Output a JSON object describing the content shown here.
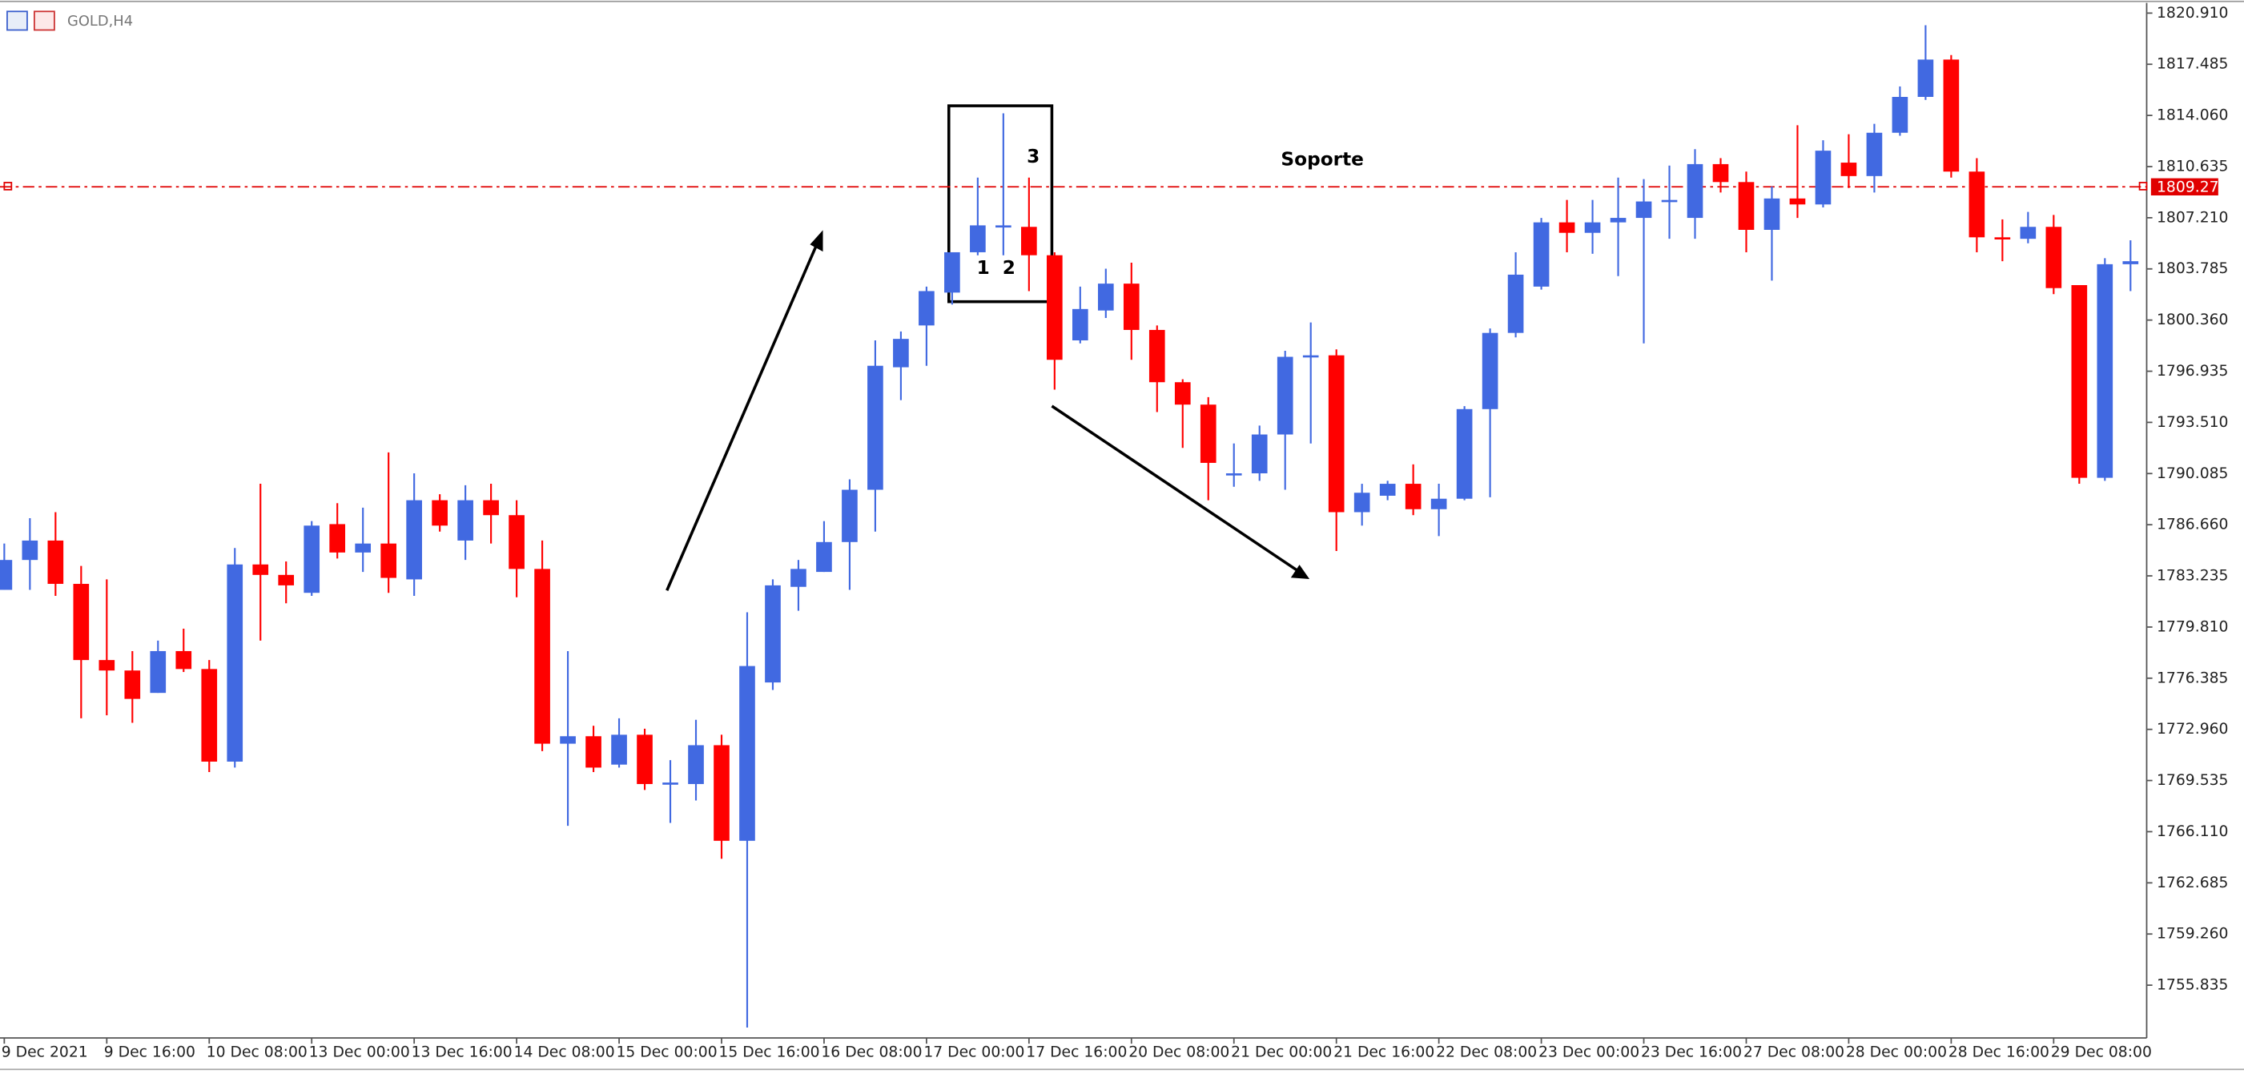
{
  "chart_data": {
    "type": "candlestick",
    "title": "GOLD,H4",
    "categories": [
      "9 Dec 2021",
      null,
      null,
      null,
      "9 Dec 16:00",
      null,
      null,
      null,
      "10 Dec 08:00",
      null,
      null,
      null,
      "13 Dec 00:00",
      null,
      null,
      null,
      "13 Dec 16:00",
      null,
      null,
      null,
      "14 Dec 08:00",
      null,
      null,
      null,
      "15 Dec 00:00",
      null,
      null,
      null,
      "15 Dec 16:00",
      null,
      null,
      null,
      "16 Dec 08:00",
      null,
      null,
      null,
      "17 Dec 00:00",
      null,
      null,
      null,
      "17 Dec 16:00",
      null,
      null,
      null,
      "20 Dec 08:00",
      null,
      null,
      null,
      "21 Dec 00:00",
      null,
      null,
      null,
      "21 Dec 16:00",
      null,
      null,
      null,
      "22 Dec 08:00",
      null,
      null,
      null,
      "23 Dec 00:00",
      null,
      null,
      null,
      "23 Dec 16:00",
      null,
      null,
      null,
      "27 Dec 08:00",
      null,
      null,
      null,
      "28 Dec 00:00",
      null,
      null,
      null,
      "28 Dec 16:00",
      null,
      null,
      null,
      "29 Dec 08:00",
      null,
      null,
      null
    ],
    "open": [
      1782.3,
      1784.3,
      1785.6,
      1782.7,
      1777.6,
      1776.9,
      1775.4,
      1778.2,
      1777.0,
      1770.8,
      1784.0,
      1783.3,
      1782.1,
      1786.7,
      1784.8,
      1785.4,
      1783.0,
      1788.3,
      1785.6,
      1788.3,
      1787.3,
      1783.7,
      1772.0,
      1772.5,
      1770.6,
      1772.6,
      1769.3,
      1769.3,
      1771.9,
      1765.5,
      1776.1,
      1782.5,
      1783.5,
      1785.5,
      1789.0,
      1797.2,
      1800.0,
      1802.2,
      1804.9,
      1806.6,
      1806.6,
      1804.7,
      1799.0,
      1801.0,
      1802.8,
      1799.7,
      1796.2,
      1794.7,
      1790.0,
      1790.1,
      1792.7,
      1797.9,
      1798.0,
      1787.5,
      1788.6,
      1789.4,
      1787.7,
      1788.4,
      1794.4,
      1799.5,
      1802.6,
      1806.9,
      1806.2,
      1806.9,
      1807.2,
      1808.3,
      1807.2,
      1810.8,
      1809.6,
      1806.4,
      1808.5,
      1808.1,
      1810.9,
      1810.0,
      1812.9,
      1815.3,
      1817.8,
      1810.3,
      1805.9,
      1805.8,
      1806.6,
      1802.7,
      1789.8,
      1804.1
    ],
    "high": [
      1785.4,
      1787.1,
      1787.5,
      1783.9,
      1783.0,
      1778.2,
      1778.9,
      1779.7,
      1777.6,
      1785.1,
      1789.4,
      1784.2,
      1786.9,
      1788.1,
      1787.8,
      1791.5,
      1790.1,
      1788.7,
      1789.3,
      1789.4,
      1788.3,
      1785.6,
      1778.2,
      1773.2,
      1773.7,
      1773.0,
      1770.9,
      1773.6,
      1772.6,
      1780.8,
      1783.0,
      1784.3,
      1786.9,
      1789.7,
      1799.0,
      1799.6,
      1802.6,
      1804.9,
      1809.9,
      1814.2,
      1809.9,
      1804.9,
      1802.6,
      1803.8,
      1804.2,
      1800.0,
      1796.4,
      1795.2,
      1792.1,
      1793.3,
      1798.3,
      1800.2,
      1798.4,
      1789.4,
      1789.6,
      1790.7,
      1789.4,
      1794.6,
      1799.8,
      1804.9,
      1807.2,
      1808.4,
      1808.4,
      1809.9,
      1809.8,
      1810.7,
      1811.8,
      1811.2,
      1810.3,
      1809.3,
      1813.4,
      1812.4,
      1812.8,
      1813.5,
      1816.0,
      1820.1,
      1818.1,
      1811.2,
      1807.1,
      1807.6,
      1807.4,
      1802.7,
      1804.5,
      1805.7
    ],
    "low": [
      1782.3,
      1782.3,
      1781.9,
      1773.7,
      1773.9,
      1773.4,
      1775.4,
      1776.8,
      1770.1,
      1770.4,
      1778.9,
      1781.4,
      1781.9,
      1784.4,
      1783.5,
      1782.1,
      1781.9,
      1786.2,
      1784.3,
      1785.4,
      1781.8,
      1771.5,
      1766.5,
      1770.1,
      1770.4,
      1768.9,
      1766.7,
      1768.2,
      1764.3,
      1753.0,
      1775.6,
      1780.9,
      1783.5,
      1782.3,
      1786.2,
      1795.0,
      1797.3,
      1801.4,
      1804.7,
      1804.7,
      1802.3,
      1795.7,
      1798.8,
      1800.5,
      1797.7,
      1794.2,
      1791.8,
      1788.3,
      1789.2,
      1789.6,
      1789.0,
      1792.1,
      1784.9,
      1786.6,
      1788.3,
      1787.3,
      1785.9,
      1788.3,
      1788.5,
      1799.2,
      1802.4,
      1804.9,
      1804.8,
      1803.3,
      1798.8,
      1805.8,
      1805.8,
      1808.9,
      1804.9,
      1803.0,
      1807.2,
      1807.9,
      1809.2,
      1808.9,
      1812.7,
      1815.1,
      1809.9,
      1804.9,
      1804.3,
      1805.5,
      1802.1,
      1789.4,
      1789.6,
      1802.3
    ],
    "close": [
      1784.3,
      1785.6,
      1782.7,
      1777.6,
      1776.9,
      1775.0,
      1778.2,
      1777.0,
      1770.8,
      1784.0,
      1783.3,
      1782.6,
      1786.6,
      1784.8,
      1785.4,
      1783.1,
      1788.3,
      1786.6,
      1788.3,
      1787.3,
      1783.7,
      1772.0,
      1772.5,
      1770.4,
      1772.6,
      1769.3,
      1769.4,
      1771.9,
      1765.5,
      1777.2,
      1782.6,
      1783.7,
      1785.5,
      1789.0,
      1797.3,
      1799.1,
      1802.3,
      1804.9,
      1806.7,
      1806.7,
      1804.7,
      1797.7,
      1801.1,
      1802.8,
      1799.7,
      1796.2,
      1794.7,
      1790.8,
      1790.1,
      1792.7,
      1797.9,
      1798.0,
      1787.5,
      1788.8,
      1789.4,
      1787.7,
      1788.4,
      1794.4,
      1799.5,
      1803.4,
      1806.9,
      1806.2,
      1806.9,
      1807.2,
      1808.3,
      1808.4,
      1810.8,
      1809.6,
      1806.4,
      1808.5,
      1808.1,
      1811.7,
      1810.0,
      1812.9,
      1815.3,
      1817.8,
      1810.3,
      1805.9,
      1805.8,
      1806.6,
      1802.5,
      1789.8,
      1804.1,
      1804.3
    ],
    "up_color": "#4169e1",
    "down_color": "#ff0000",
    "ylim": [
      1752.3,
      1821.5
    ],
    "yticks": [
      {
        "value": 1820.91,
        "label": "1820.910"
      },
      {
        "value": 1817.485,
        "label": "1817.485"
      },
      {
        "value": 1814.06,
        "label": "1814.060"
      },
      {
        "value": 1810.635,
        "label": "1810.635"
      },
      {
        "value": 1807.21,
        "label": "1807.210"
      },
      {
        "value": 1803.785,
        "label": "1803.785"
      },
      {
        "value": 1800.36,
        "label": "1800.360"
      },
      {
        "value": 1796.935,
        "label": "1796.935"
      },
      {
        "value": 1793.51,
        "label": "1793.510"
      },
      {
        "value": 1790.085,
        "label": "1790.085"
      },
      {
        "value": 1786.66,
        "label": "1786.660"
      },
      {
        "value": 1783.235,
        "label": "1783.235"
      },
      {
        "value": 1779.81,
        "label": "1779.810"
      },
      {
        "value": 1776.385,
        "label": "1776.385"
      },
      {
        "value": 1772.96,
        "label": "1772.960"
      },
      {
        "value": 1769.535,
        "label": "1769.535"
      },
      {
        "value": 1766.11,
        "label": "1766.110"
      },
      {
        "value": 1762.685,
        "label": "1762.685"
      },
      {
        "value": 1759.26,
        "label": "1759.260"
      },
      {
        "value": 1755.835,
        "label": "1755.835"
      }
    ],
    "support_level": 1809.279,
    "support_color": "#e00000",
    "annotations": [
      "Soporte",
      "1",
      "2",
      "3"
    ]
  }
}
